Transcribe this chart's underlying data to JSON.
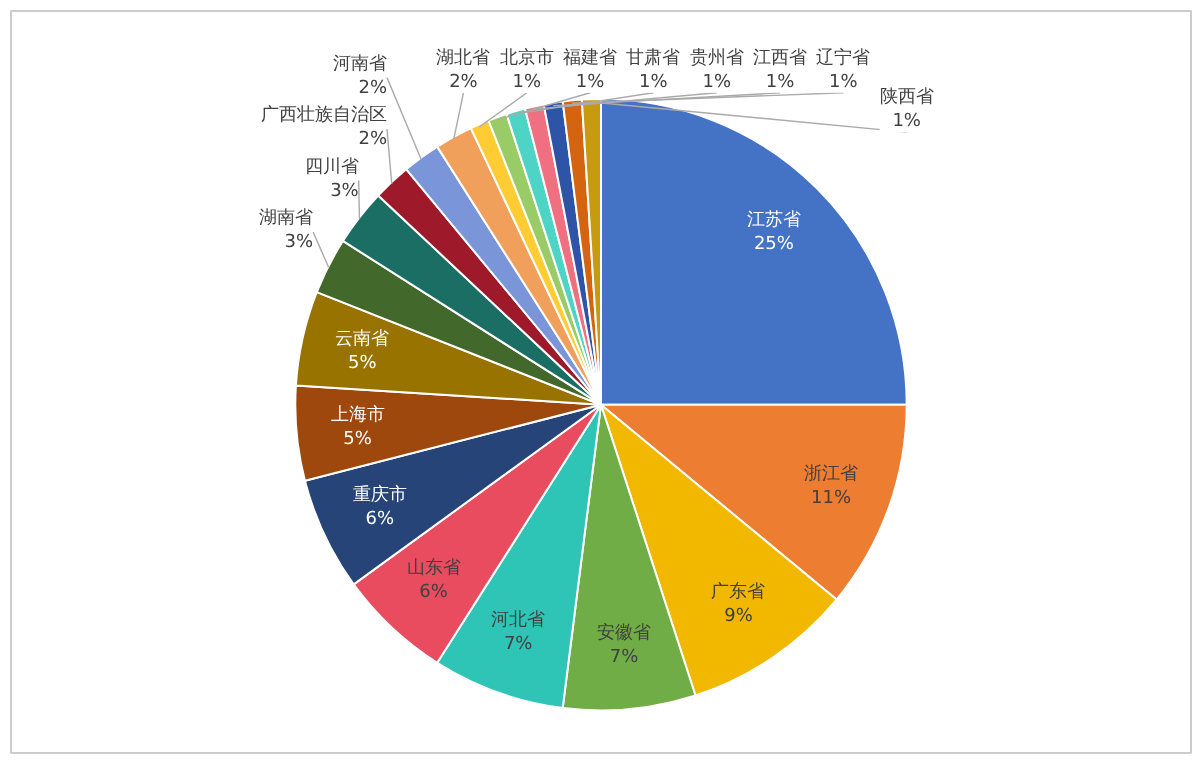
{
  "chart_data": {
    "type": "pie",
    "categories": [
      "江苏省",
      "浙江省",
      "广东省",
      "安徽省",
      "河北省",
      "山东省",
      "重庆市",
      "上海市",
      "云南省",
      "湖南省",
      "四川省",
      "广西壮族自治区",
      "河南省",
      "湖北省",
      "北京市",
      "福建省",
      "甘肃省",
      "贵州省",
      "江西省",
      "辽宁省",
      "陕西省"
    ],
    "values": [
      25,
      11,
      9,
      7,
      7,
      6,
      6,
      5,
      5,
      3,
      3,
      2,
      2,
      2,
      1,
      1,
      1,
      1,
      1,
      1,
      1
    ],
    "value_labels": [
      "25%",
      "11%",
      "9%",
      "7%",
      "7%",
      "6%",
      "6%",
      "5%",
      "5%",
      "3%",
      "3%",
      "2%",
      "2%",
      "2%",
      "1%",
      "1%",
      "1%",
      "1%",
      "1%",
      "1%",
      "1%"
    ],
    "colors": [
      "#4472c4",
      "#ed7d31",
      "#f2b800",
      "#70ad47",
      "#2ec4b6",
      "#e84c5e",
      "#264478",
      "#9e480e",
      "#997300",
      "#43682b",
      "#1a6e64",
      "#9e1a2a",
      "#7a96d8",
      "#f0a05a",
      "#ffcc33",
      "#99cc66",
      "#4dd4c4",
      "#ef7080",
      "#2e54a8",
      "#d46410",
      "#c79a10"
    ]
  }
}
